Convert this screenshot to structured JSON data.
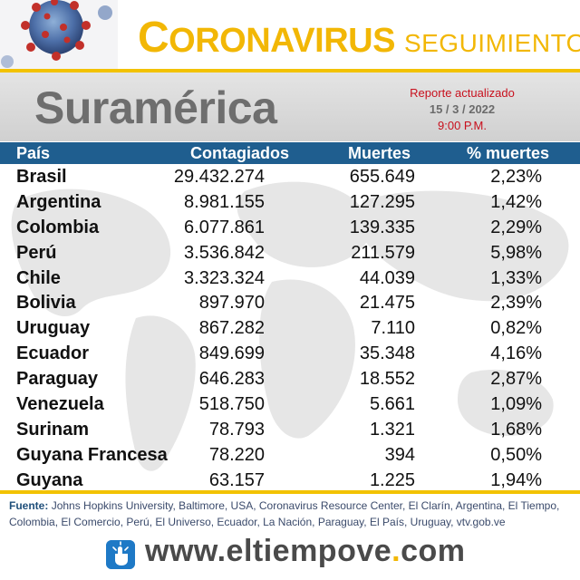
{
  "header": {
    "brand_initial": "C",
    "brand_main": "ORONAVIRUS",
    "brand_sub": "SEGUIMIENTO"
  },
  "region": {
    "title": "Suramérica",
    "report_label": "Reporte actualizado",
    "report_date": "15 / 3 / 2022",
    "report_time": "9:00 P.M."
  },
  "table": {
    "columns": {
      "country": "País",
      "cases": "Contagiados",
      "deaths": "Muertes",
      "pct": "% muertes"
    },
    "rows": [
      {
        "country": "Brasil",
        "cases": "29.432.274",
        "deaths": "655.649",
        "pct": "2,23%"
      },
      {
        "country": "Argentina",
        "cases": "8.981.155",
        "deaths": "127.295",
        "pct": "1,42%"
      },
      {
        "country": "Colombia",
        "cases": "6.077.861",
        "deaths": "139.335",
        "pct": "2,29%"
      },
      {
        "country": "Perú",
        "cases": "3.536.842",
        "deaths": "211.579",
        "pct": "5,98%"
      },
      {
        "country": "Chile",
        "cases": "3.323.324",
        "deaths": "44.039",
        "pct": "1,33%"
      },
      {
        "country": "Bolivia",
        "cases": "897.970",
        "deaths": "21.475",
        "pct": "2,39%"
      },
      {
        "country": "Uruguay",
        "cases": "867.282",
        "deaths": "7.110",
        "pct": "0,82%"
      },
      {
        "country": "Ecuador",
        "cases": "849.699",
        "deaths": "35.348",
        "pct": "4,16%"
      },
      {
        "country": "Paraguay",
        "cases": "646.283",
        "deaths": "18.552",
        "pct": "2,87%"
      },
      {
        "country": "Venezuela",
        "cases": "518.750",
        "deaths": "5.661",
        "pct": "1,09%"
      },
      {
        "country": "Surinam",
        "cases": "78.793",
        "deaths": "1.321",
        "pct": "1,68%"
      },
      {
        "country": "Guyana Francesa",
        "cases": "78.220",
        "deaths": "394",
        "pct": "0,50%"
      },
      {
        "country": "Guyana",
        "cases": "63.157",
        "deaths": "1.225",
        "pct": "1,94%"
      }
    ]
  },
  "footer": {
    "source_label": "Fuente:",
    "source_text": "Johns Hopkins University, Baltimore, USA, Coronavirus Resource Center,  El Clarín, Argentina, El Tiempo, Colombia, El Comercio, Perú, El Universo, Ecuador, La Nación, Paraguay, El País, Uruguay, vtv.gob.ve",
    "site_prefix": "www.",
    "site_name": "eltiempove",
    "site_suffix": "com"
  },
  "colors": {
    "brand_yellow": "#f2b705",
    "header_blue": "#1f5e8f",
    "report_red": "#c8101d",
    "region_gray": "#6e6e6e"
  },
  "icons": [
    "virus-icon",
    "touch-hand-icon",
    "world-map-icon"
  ]
}
